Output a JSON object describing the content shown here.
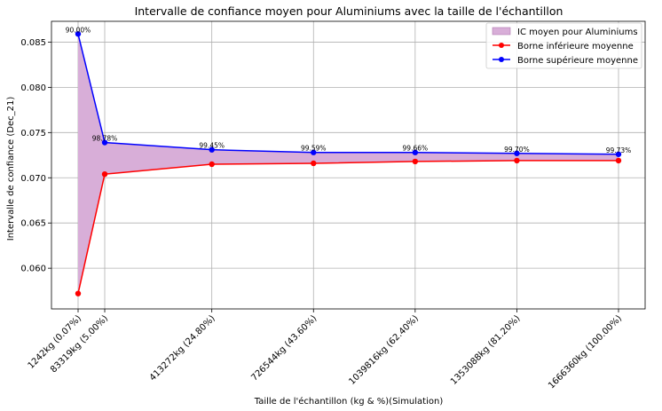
{
  "chart_data": {
    "type": "line",
    "title": "Intervalle de confiance moyen pour Aluminiums avec la taille de l'échantillon",
    "xlabel": "Taille de l'échantillon (kg & %)(Simulation)",
    "ylabel": "Intervalle de confiance (Dec_21)",
    "x": [
      1242,
      83319,
      413272,
      726544,
      1039816,
      1353088,
      1666360
    ],
    "x_tick_labels": [
      "1242kg (0.07%)",
      "83319kg (5.00%)",
      "413272kg (24.80%)",
      "726544kg (43.60%)",
      "1039816kg (62.40%)",
      "1353088kg (81.20%)",
      "1666360kg (100.00%)"
    ],
    "y_ticks": [
      0.06,
      0.065,
      0.07,
      0.075,
      0.08,
      0.085
    ],
    "y_tick_labels": [
      "0.060",
      "0.065",
      "0.070",
      "0.075",
      "0.080",
      "0.085"
    ],
    "ylim": [
      0.0555,
      0.0873
    ],
    "grid": true,
    "legend_position": "top-right",
    "series": [
      {
        "name": "Borne inférieure moyenne",
        "color": "#ff0000",
        "values": [
          0.0572,
          0.0704,
          0.0715,
          0.0716,
          0.0718,
          0.0719,
          0.0719
        ]
      },
      {
        "name": "Borne supérieure moyenne",
        "color": "#0000ff",
        "values": [
          0.0859,
          0.0739,
          0.0731,
          0.0728,
          0.0728,
          0.0727,
          0.0726
        ]
      }
    ],
    "fill": {
      "name": "IC moyen pour Aluminiums",
      "color": "#d8aed8"
    },
    "point_labels": [
      "90.00%",
      "98.78%",
      "99.45%",
      "99.59%",
      "99.66%",
      "99.70%",
      "99.73%"
    ]
  }
}
